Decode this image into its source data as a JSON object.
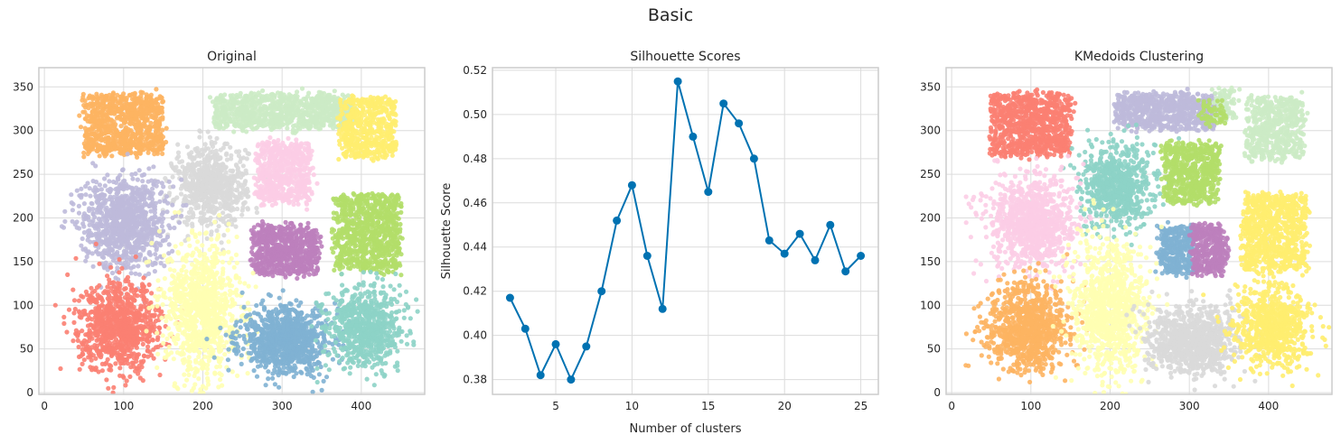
{
  "figure": {
    "title": "Basic"
  },
  "chart_data": [
    {
      "type": "scatter",
      "title": "Original",
      "xlabel": "",
      "ylabel": "",
      "xlim": [
        -7,
        480
      ],
      "ylim": [
        -2,
        372
      ],
      "xticks": [
        0,
        100,
        200,
        300,
        400
      ],
      "yticks": [
        0,
        50,
        100,
        150,
        200,
        250,
        300,
        350
      ],
      "grid": true,
      "clusters": [
        {
          "color": "#fdb462",
          "cx": 100,
          "cy": 307,
          "sx": 32,
          "sy": 22,
          "n": 850,
          "shape": "square"
        },
        {
          "color": "#ccebc5",
          "cx": 300,
          "cy": 322,
          "sx": 56,
          "sy": 12,
          "n": 900,
          "shape": "square"
        },
        {
          "color": "#ffed6f",
          "cx": 408,
          "cy": 303,
          "sx": 22,
          "sy": 22,
          "n": 500,
          "shape": "square"
        },
        {
          "color": "#d9d9d9",
          "cx": 210,
          "cy": 237,
          "sx": 24,
          "sy": 24,
          "n": 700,
          "shape": "gauss"
        },
        {
          "color": "#fccde5",
          "cx": 303,
          "cy": 252,
          "sx": 22,
          "sy": 22,
          "n": 600,
          "shape": "square"
        },
        {
          "color": "#bebada",
          "cx": 100,
          "cy": 195,
          "sx": 28,
          "sy": 28,
          "n": 950,
          "shape": "gauss"
        },
        {
          "color": "#bc80bd",
          "cx": 305,
          "cy": 163,
          "sx": 27,
          "sy": 17,
          "n": 700,
          "shape": "square"
        },
        {
          "color": "#b3de69",
          "cx": 408,
          "cy": 183,
          "sx": 26,
          "sy": 28,
          "n": 800,
          "shape": "square"
        },
        {
          "color": "#fb8072",
          "cx": 95,
          "cy": 75,
          "sx": 27,
          "sy": 26,
          "n": 900,
          "shape": "gauss"
        },
        {
          "color": "#ffffb3",
          "cx": 200,
          "cy": 95,
          "sx": 24,
          "sy": 40,
          "n": 1000,
          "shape": "gauss"
        },
        {
          "color": "#80b1d3",
          "cx": 305,
          "cy": 60,
          "sx": 30,
          "sy": 20,
          "n": 900,
          "shape": "gauss"
        },
        {
          "color": "#8dd3c7",
          "cx": 405,
          "cy": 75,
          "sx": 25,
          "sy": 24,
          "n": 700,
          "shape": "gauss"
        }
      ]
    },
    {
      "type": "line",
      "title": "Silhouette Scores",
      "xlabel": "Number of clusters",
      "ylabel": "Silhouette Score",
      "xlim": [
        0.85,
        26.15
      ],
      "ylim": [
        0.3733,
        0.5212
      ],
      "xticks": [
        5,
        10,
        15,
        20,
        25
      ],
      "yticks": [
        0.38,
        0.4,
        0.42,
        0.44,
        0.46,
        0.48,
        0.5,
        0.52
      ],
      "ytick_labels": [
        "0.38",
        "0.40",
        "0.42",
        "0.44",
        "0.46",
        "0.48",
        "0.50",
        "0.52"
      ],
      "grid": true,
      "color": "#0072b2",
      "x": [
        2,
        3,
        4,
        5,
        6,
        7,
        8,
        9,
        10,
        11,
        12,
        13,
        14,
        15,
        16,
        17,
        18,
        19,
        20,
        21,
        22,
        23,
        24,
        25
      ],
      "y": [
        0.417,
        0.403,
        0.382,
        0.396,
        0.38,
        0.395,
        0.42,
        0.452,
        0.468,
        0.436,
        0.412,
        0.515,
        0.49,
        0.465,
        0.505,
        0.496,
        0.48,
        0.443,
        0.437,
        0.446,
        0.434,
        0.45,
        0.429,
        0.436
      ]
    },
    {
      "type": "scatter",
      "title": "KMedoids Clustering",
      "xlabel": "",
      "ylabel": "",
      "xlim": [
        -7,
        480
      ],
      "ylim": [
        -2,
        372
      ],
      "xticks": [
        0,
        100,
        200,
        300,
        400
      ],
      "yticks": [
        0,
        50,
        100,
        150,
        200,
        250,
        300,
        350
      ],
      "grid": true,
      "clusters": [
        {
          "color": "#fb8072",
          "cx": 100,
          "cy": 307,
          "sx": 32,
          "sy": 22,
          "n": 850,
          "shape": "square"
        },
        {
          "color": "#bebada",
          "cx": 270,
          "cy": 322,
          "sx": 40,
          "sy": 12,
          "n": 700,
          "shape": "square"
        },
        {
          "color": "#ccebc5",
          "cx": 345,
          "cy": 330,
          "sx": 8,
          "sy": 10,
          "n": 80,
          "shape": "square"
        },
        {
          "color": "#b3de69",
          "cx": 330,
          "cy": 320,
          "sx": 10,
          "sy": 8,
          "n": 60,
          "shape": "square"
        },
        {
          "color": "#ccebc5",
          "cx": 408,
          "cy": 303,
          "sx": 22,
          "sy": 22,
          "n": 500,
          "shape": "square"
        },
        {
          "color": "#8dd3c7",
          "cx": 210,
          "cy": 237,
          "sx": 24,
          "sy": 24,
          "n": 700,
          "shape": "gauss"
        },
        {
          "color": "#b3de69",
          "cx": 303,
          "cy": 252,
          "sx": 22,
          "sy": 22,
          "n": 600,
          "shape": "square"
        },
        {
          "color": "#fccde5",
          "cx": 100,
          "cy": 195,
          "sx": 28,
          "sy": 28,
          "n": 950,
          "shape": "gauss"
        },
        {
          "color": "#80b1d3",
          "cx": 285,
          "cy": 163,
          "sx": 14,
          "sy": 17,
          "n": 350,
          "shape": "square"
        },
        {
          "color": "#bc80bd",
          "cx": 325,
          "cy": 163,
          "sx": 13,
          "sy": 17,
          "n": 350,
          "shape": "square"
        },
        {
          "color": "#ffed6f",
          "cx": 408,
          "cy": 183,
          "sx": 26,
          "sy": 28,
          "n": 800,
          "shape": "square"
        },
        {
          "color": "#fdb462",
          "cx": 95,
          "cy": 75,
          "sx": 27,
          "sy": 26,
          "n": 900,
          "shape": "gauss"
        },
        {
          "color": "#ffffb3",
          "cx": 200,
          "cy": 95,
          "sx": 24,
          "sy": 40,
          "n": 1000,
          "shape": "gauss"
        },
        {
          "color": "#d9d9d9",
          "cx": 305,
          "cy": 60,
          "sx": 30,
          "sy": 20,
          "n": 900,
          "shape": "gauss"
        },
        {
          "color": "#ffed6f",
          "cx": 405,
          "cy": 75,
          "sx": 25,
          "sy": 24,
          "n": 700,
          "shape": "gauss"
        }
      ]
    }
  ]
}
